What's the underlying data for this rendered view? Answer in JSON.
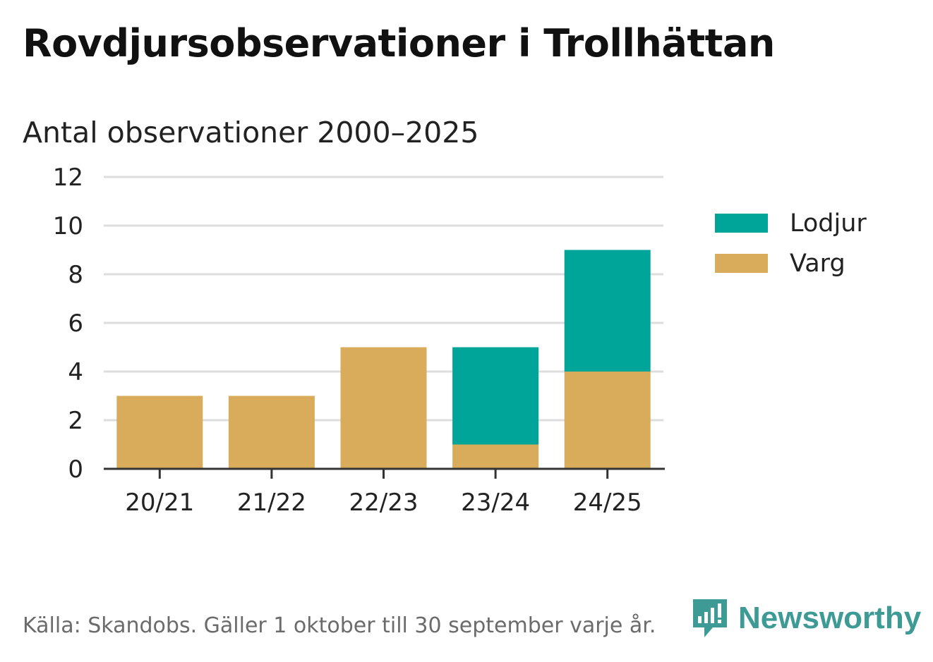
{
  "header": {
    "title": "Rovdjursobservationer i Trollhättan",
    "subtitle": "Antal observationer 2000–2025"
  },
  "legend": {
    "items": [
      {
        "label": "Lodjur",
        "color": "#00a59a"
      },
      {
        "label": "Varg",
        "color": "#d9ac5b"
      }
    ]
  },
  "footer": {
    "source": "Källa: Skandobs. Gäller 1 oktober till 30 september varje år.",
    "brand": "Newsworthy",
    "brand_icon": "newsworthy-logo-icon"
  },
  "chart_data": {
    "type": "bar",
    "stacked": true,
    "categories": [
      "20/21",
      "21/22",
      "22/23",
      "23/24",
      "24/25"
    ],
    "series": [
      {
        "name": "Varg",
        "values": [
          3,
          3,
          5,
          1,
          4
        ],
        "color": "#d9ac5b"
      },
      {
        "name": "Lodjur",
        "values": [
          0,
          0,
          0,
          4,
          5
        ],
        "color": "#00a59a"
      }
    ],
    "ylim": [
      0,
      12
    ],
    "yticks": [
      0,
      2,
      4,
      6,
      8,
      10,
      12
    ],
    "grid": true,
    "legend_position": "right"
  }
}
